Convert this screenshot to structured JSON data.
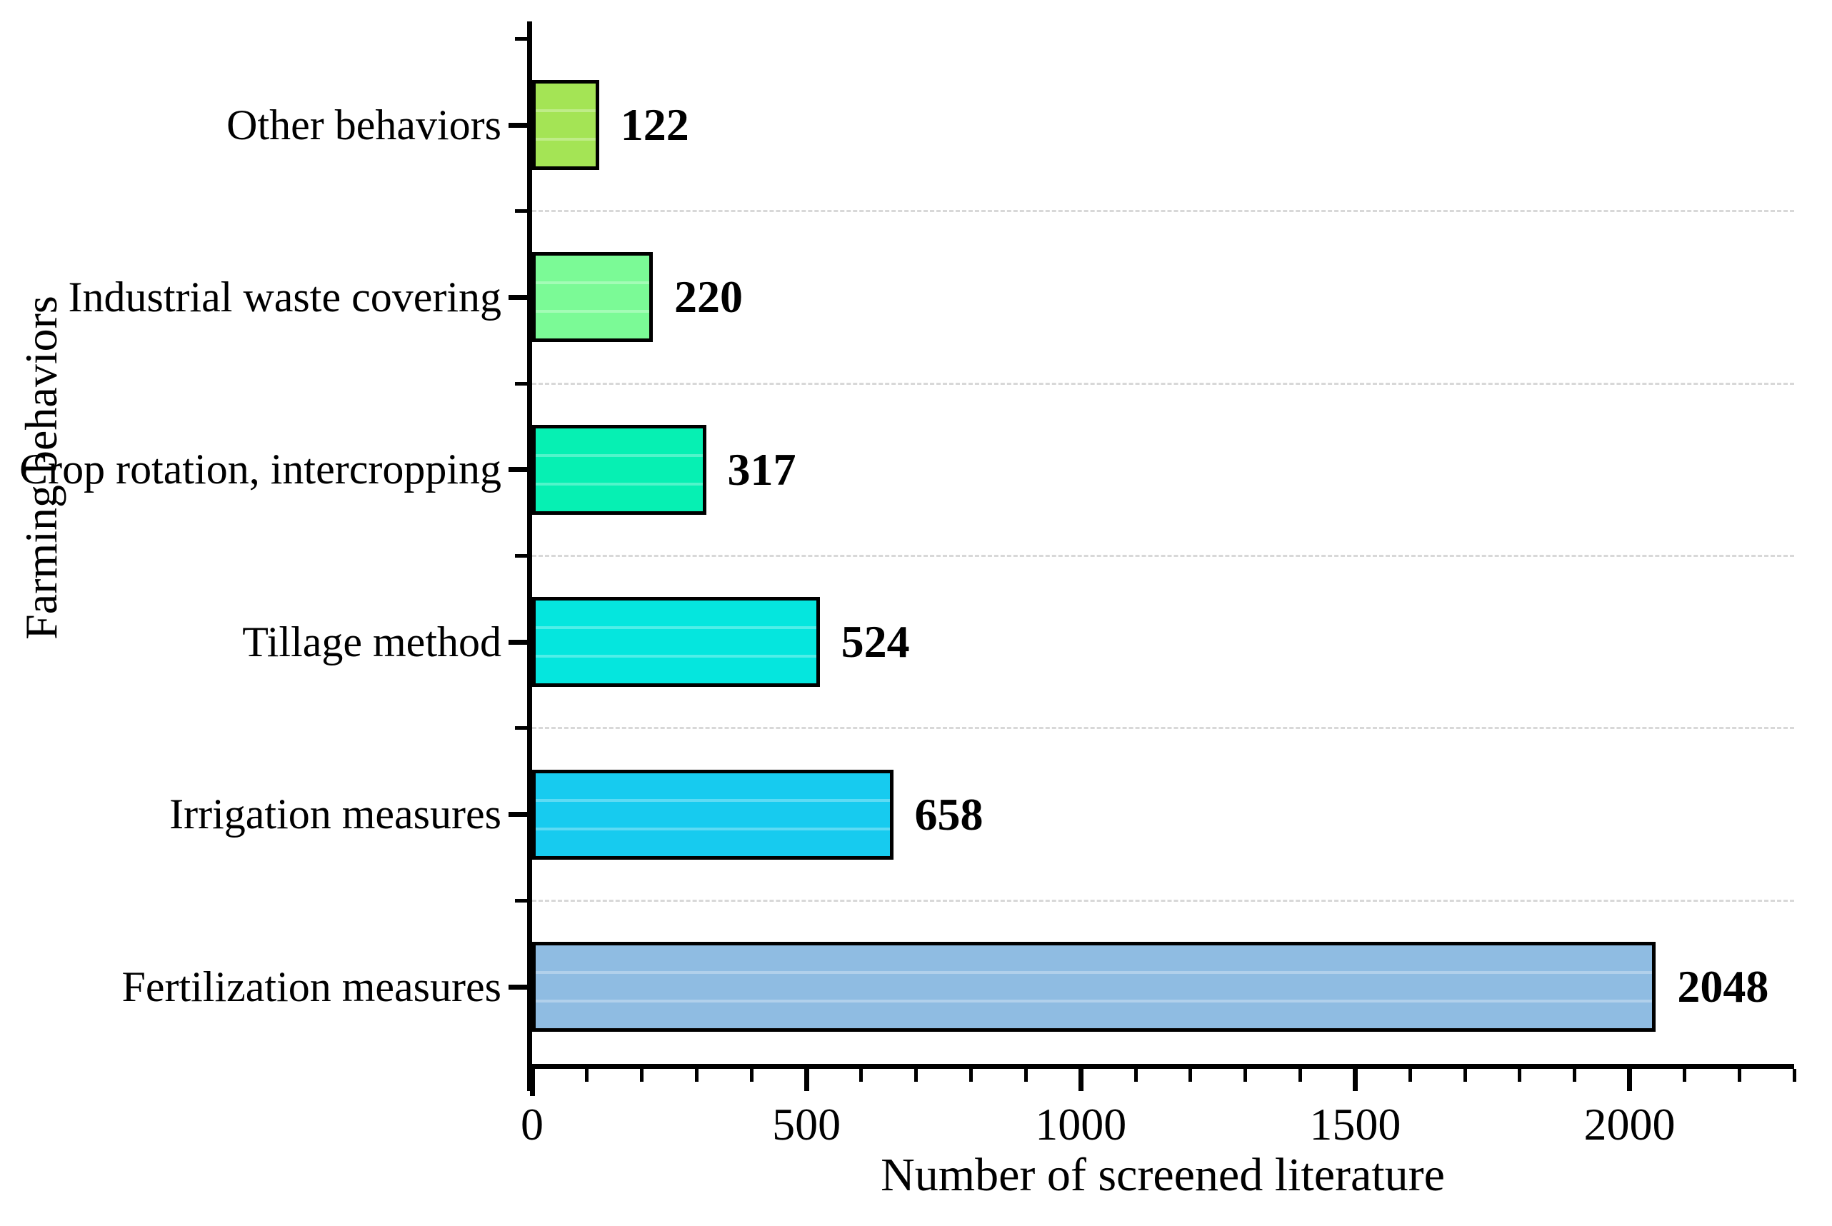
{
  "chart_data": {
    "type": "bar",
    "orientation": "horizontal",
    "xlabel": "Number of screened literature",
    "ylabel": "Farming behaviors",
    "categories": [
      "Other behaviors",
      "Industrial waste covering",
      "Crop rotation, intercropping",
      "Tillage method",
      "Irrigation measures",
      "Fertilization measures"
    ],
    "values": [
      122,
      220,
      317,
      524,
      658,
      2048
    ],
    "value_labels": [
      "122",
      "220",
      "317",
      "524",
      "658",
      "2048"
    ],
    "bar_colors": [
      "#a4e455",
      "#7bfa96",
      "#06f0b3",
      "#05e6de",
      "#17cbef",
      "#8fbce2"
    ],
    "bar_border_color": "#000000",
    "xlim": [
      0,
      2300
    ],
    "x_major_ticks": [
      0,
      500,
      1000,
      1500,
      2000
    ],
    "x_major_tick_labels": [
      "0",
      "500",
      "1000",
      "1500",
      "2000"
    ],
    "x_minor_tick_interval": 100,
    "grid": "dashed horizontal lines between category slots",
    "gridline_color": "#d8d8d8",
    "background_color": "#ffffff",
    "legend": "none",
    "title": ""
  }
}
